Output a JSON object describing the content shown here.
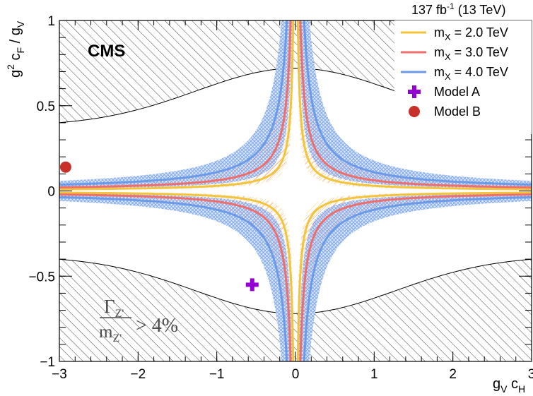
{
  "chart_data": {
    "type": "line",
    "title": "",
    "experiment_label": "CMS",
    "luminosity": "137 fb",
    "luminosity_exponent": "-1",
    "energy": "(13 TeV)",
    "xlabel": "g",
    "xlabel_parts": {
      "main": "g",
      "sub1": "V",
      "mid": " c",
      "sub2": "H"
    },
    "ylabel": "g² c_F / g_V",
    "ylabel_parts": {
      "main": "g",
      "sup": "2",
      "mid": " c",
      "sub1": "F",
      "tail": " / g",
      "sub2": "V"
    },
    "xlim": [
      -3,
      3
    ],
    "ylim": [
      -1,
      1
    ],
    "x_ticks": [
      -3,
      -2,
      -1,
      0,
      1,
      2,
      3
    ],
    "x_tick_labels": [
      "−3",
      "−2",
      "−1",
      "0",
      "1",
      "2",
      "3"
    ],
    "y_ticks": [
      -1,
      -0.5,
      0,
      0.5,
      1
    ],
    "y_tick_labels": [
      "−1",
      "−0.5",
      "0",
      "0.5",
      "1"
    ],
    "grid": false,
    "legend_position": "top-right",
    "series": [
      {
        "name": "m",
        "mass_label": "= 2.0 TeV",
        "color": "#f2c43b",
        "k": 0.03,
        "band": 0.012,
        "hatch": "diag-yellow"
      },
      {
        "name": "m",
        "mass_label": "= 3.0 TeV",
        "color": "#ee6e6b",
        "k": 0.062,
        "band": 0.042,
        "hatch": "diag-red"
      },
      {
        "name": "m",
        "mass_label": "= 4.0 TeV",
        "color": "#6b9be8",
        "k": 0.11,
        "band": 0.068,
        "hatch": "cross-blue"
      }
    ],
    "series_subscript": "X",
    "points": [
      {
        "name": "Model A",
        "x": -0.55,
        "y": -0.55,
        "marker": "cross",
        "color": "#9400d3"
      },
      {
        "name": "Model B",
        "x": -2.92,
        "y": 0.14,
        "marker": "circle",
        "color": "#c8302a"
      }
    ],
    "exclusion_region": {
      "description_label": "> 4%",
      "fraction_num": "Γ",
      "fraction_num_sub": "Z'",
      "fraction_den": "m",
      "fraction_den_sub": "Z'",
      "upper_boundary": {
        "y_at_center": 0.72,
        "y_at_edges": 0.38
      },
      "lower_boundary": {
        "y_at_center": -0.72,
        "y_at_edges": -0.38
      }
    }
  }
}
